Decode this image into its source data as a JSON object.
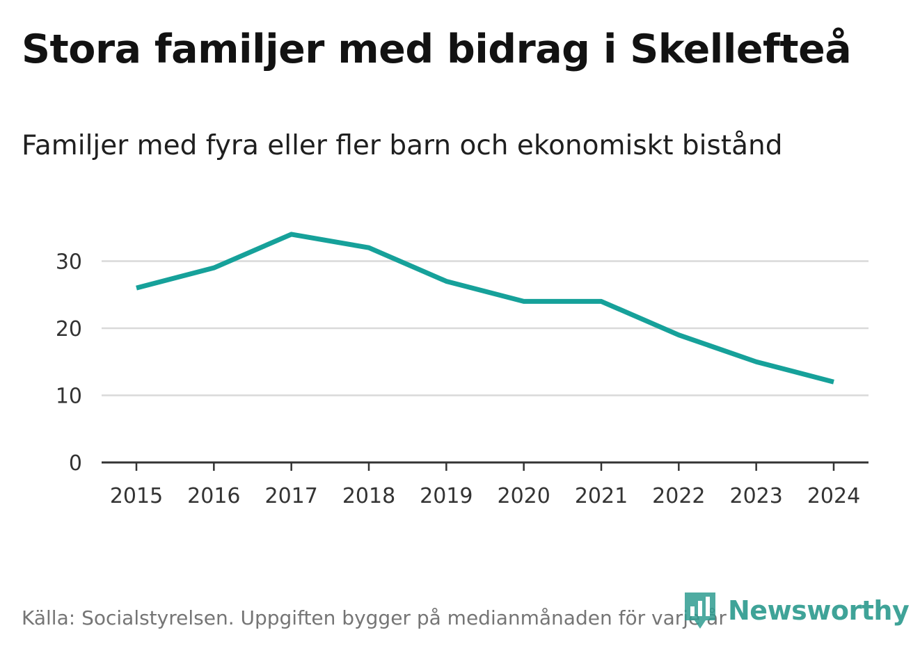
{
  "header": {
    "title": "Stora familjer med bidrag i Skellefteå",
    "subtitle": "Familjer med fyra eller fler barn och ekonomiskt bistånd"
  },
  "footer": {
    "source": "Källa: Socialstyrelsen. Uppgiften bygger på medianmånaden för varje år",
    "brand": "Newsworthy",
    "brand_icon": "newsworthy-logo-icon"
  },
  "colors": {
    "line": "#16a19a",
    "grid": "#d9d9d9",
    "axis": "#333333",
    "brand": "#2f9c90"
  },
  "chart_data": {
    "type": "line",
    "title": "Stora familjer med bidrag i Skellefteå",
    "subtitle": "Familjer med fyra eller fler barn och ekonomiskt bistånd",
    "xlabel": "",
    "ylabel": "",
    "categories": [
      "2015",
      "2016",
      "2017",
      "2018",
      "2019",
      "2020",
      "2021",
      "2022",
      "2023",
      "2024"
    ],
    "series": [
      {
        "name": "Familjer med fyra eller fler barn och ekonomiskt bistånd",
        "values": [
          26,
          29,
          34,
          32,
          27,
          24,
          24,
          19,
          15,
          12
        ]
      }
    ],
    "ylim": [
      0,
      35
    ],
    "yticks": [
      0,
      10,
      20,
      30
    ],
    "ytick_labels": [
      "0",
      "10",
      "20",
      "30"
    ],
    "grid": true,
    "legend": "none"
  }
}
